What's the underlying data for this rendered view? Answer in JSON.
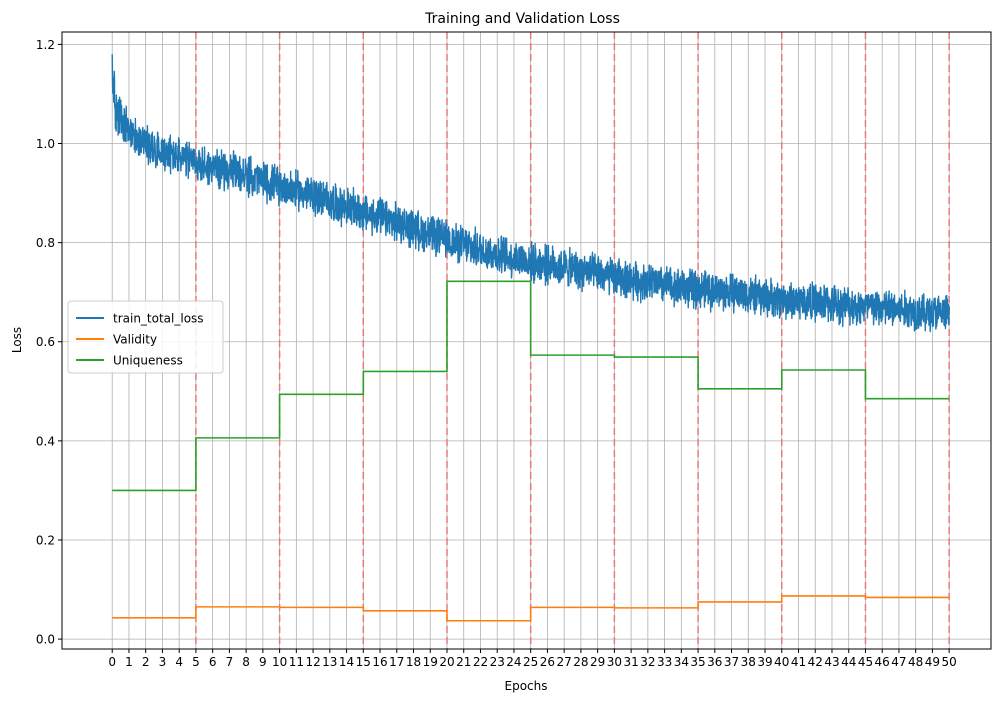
{
  "chart_data": {
    "type": "line",
    "title": "Training and Validation Loss",
    "xlabel": "Epochs",
    "ylabel": "Loss",
    "xlim": [
      -3.0,
      52.5
    ],
    "ylim": [
      -0.02,
      1.225
    ],
    "grid": true,
    "legend_position": "center-left",
    "x_ticks": [
      0,
      1,
      2,
      3,
      4,
      5,
      6,
      7,
      8,
      9,
      10,
      11,
      12,
      13,
      14,
      15,
      16,
      17,
      18,
      19,
      20,
      21,
      22,
      23,
      24,
      25,
      26,
      27,
      28,
      29,
      30,
      31,
      32,
      33,
      34,
      35,
      36,
      37,
      38,
      39,
      40,
      41,
      42,
      43,
      44,
      45,
      46,
      47,
      48,
      49,
      50
    ],
    "y_ticks": [
      0.0,
      0.2,
      0.4,
      0.6,
      0.8,
      1.0,
      1.2
    ],
    "y_tick_labels": [
      "0.0",
      "0.2",
      "0.4",
      "0.6",
      "0.8",
      "1.0",
      "1.2"
    ],
    "vlines": [
      5,
      10,
      15,
      20,
      25,
      30,
      35,
      40,
      45,
      50
    ],
    "vline_color": "#e8797a",
    "series": [
      {
        "name": "train_total_loss",
        "color": "#1f77b4",
        "kind": "noisy-trend",
        "trend": {
          "x": [
            0,
            0.2,
            0.5,
            1,
            2,
            3,
            5,
            7,
            10,
            12,
            15,
            17,
            20,
            22,
            25,
            27,
            30,
            32,
            35,
            37,
            40,
            42,
            45,
            47,
            50
          ],
          "y": [
            1.12,
            1.06,
            1.04,
            1.02,
            1.0,
            0.985,
            0.96,
            0.945,
            0.915,
            0.895,
            0.86,
            0.84,
            0.805,
            0.785,
            0.76,
            0.75,
            0.73,
            0.72,
            0.705,
            0.7,
            0.685,
            0.68,
            0.67,
            0.665,
            0.655
          ]
        },
        "noise_amplitude": 0.045
      },
      {
        "name": "Validity",
        "color": "#ff7f0e",
        "kind": "step",
        "x": [
          0,
          5,
          10,
          15,
          20,
          25,
          30,
          35,
          40,
          45
        ],
        "values": [
          0.043,
          0.065,
          0.064,
          0.057,
          0.037,
          0.064,
          0.063,
          0.075,
          0.087,
          0.084
        ],
        "x_end": 50
      },
      {
        "name": "Uniqueness",
        "color": "#2ca02c",
        "kind": "step",
        "x": [
          0,
          5,
          10,
          15,
          20,
          25,
          30,
          35,
          40,
          45
        ],
        "values": [
          0.3,
          0.406,
          0.494,
          0.54,
          0.722,
          0.573,
          0.569,
          0.505,
          0.543,
          0.485
        ],
        "x_end": 50
      }
    ]
  }
}
